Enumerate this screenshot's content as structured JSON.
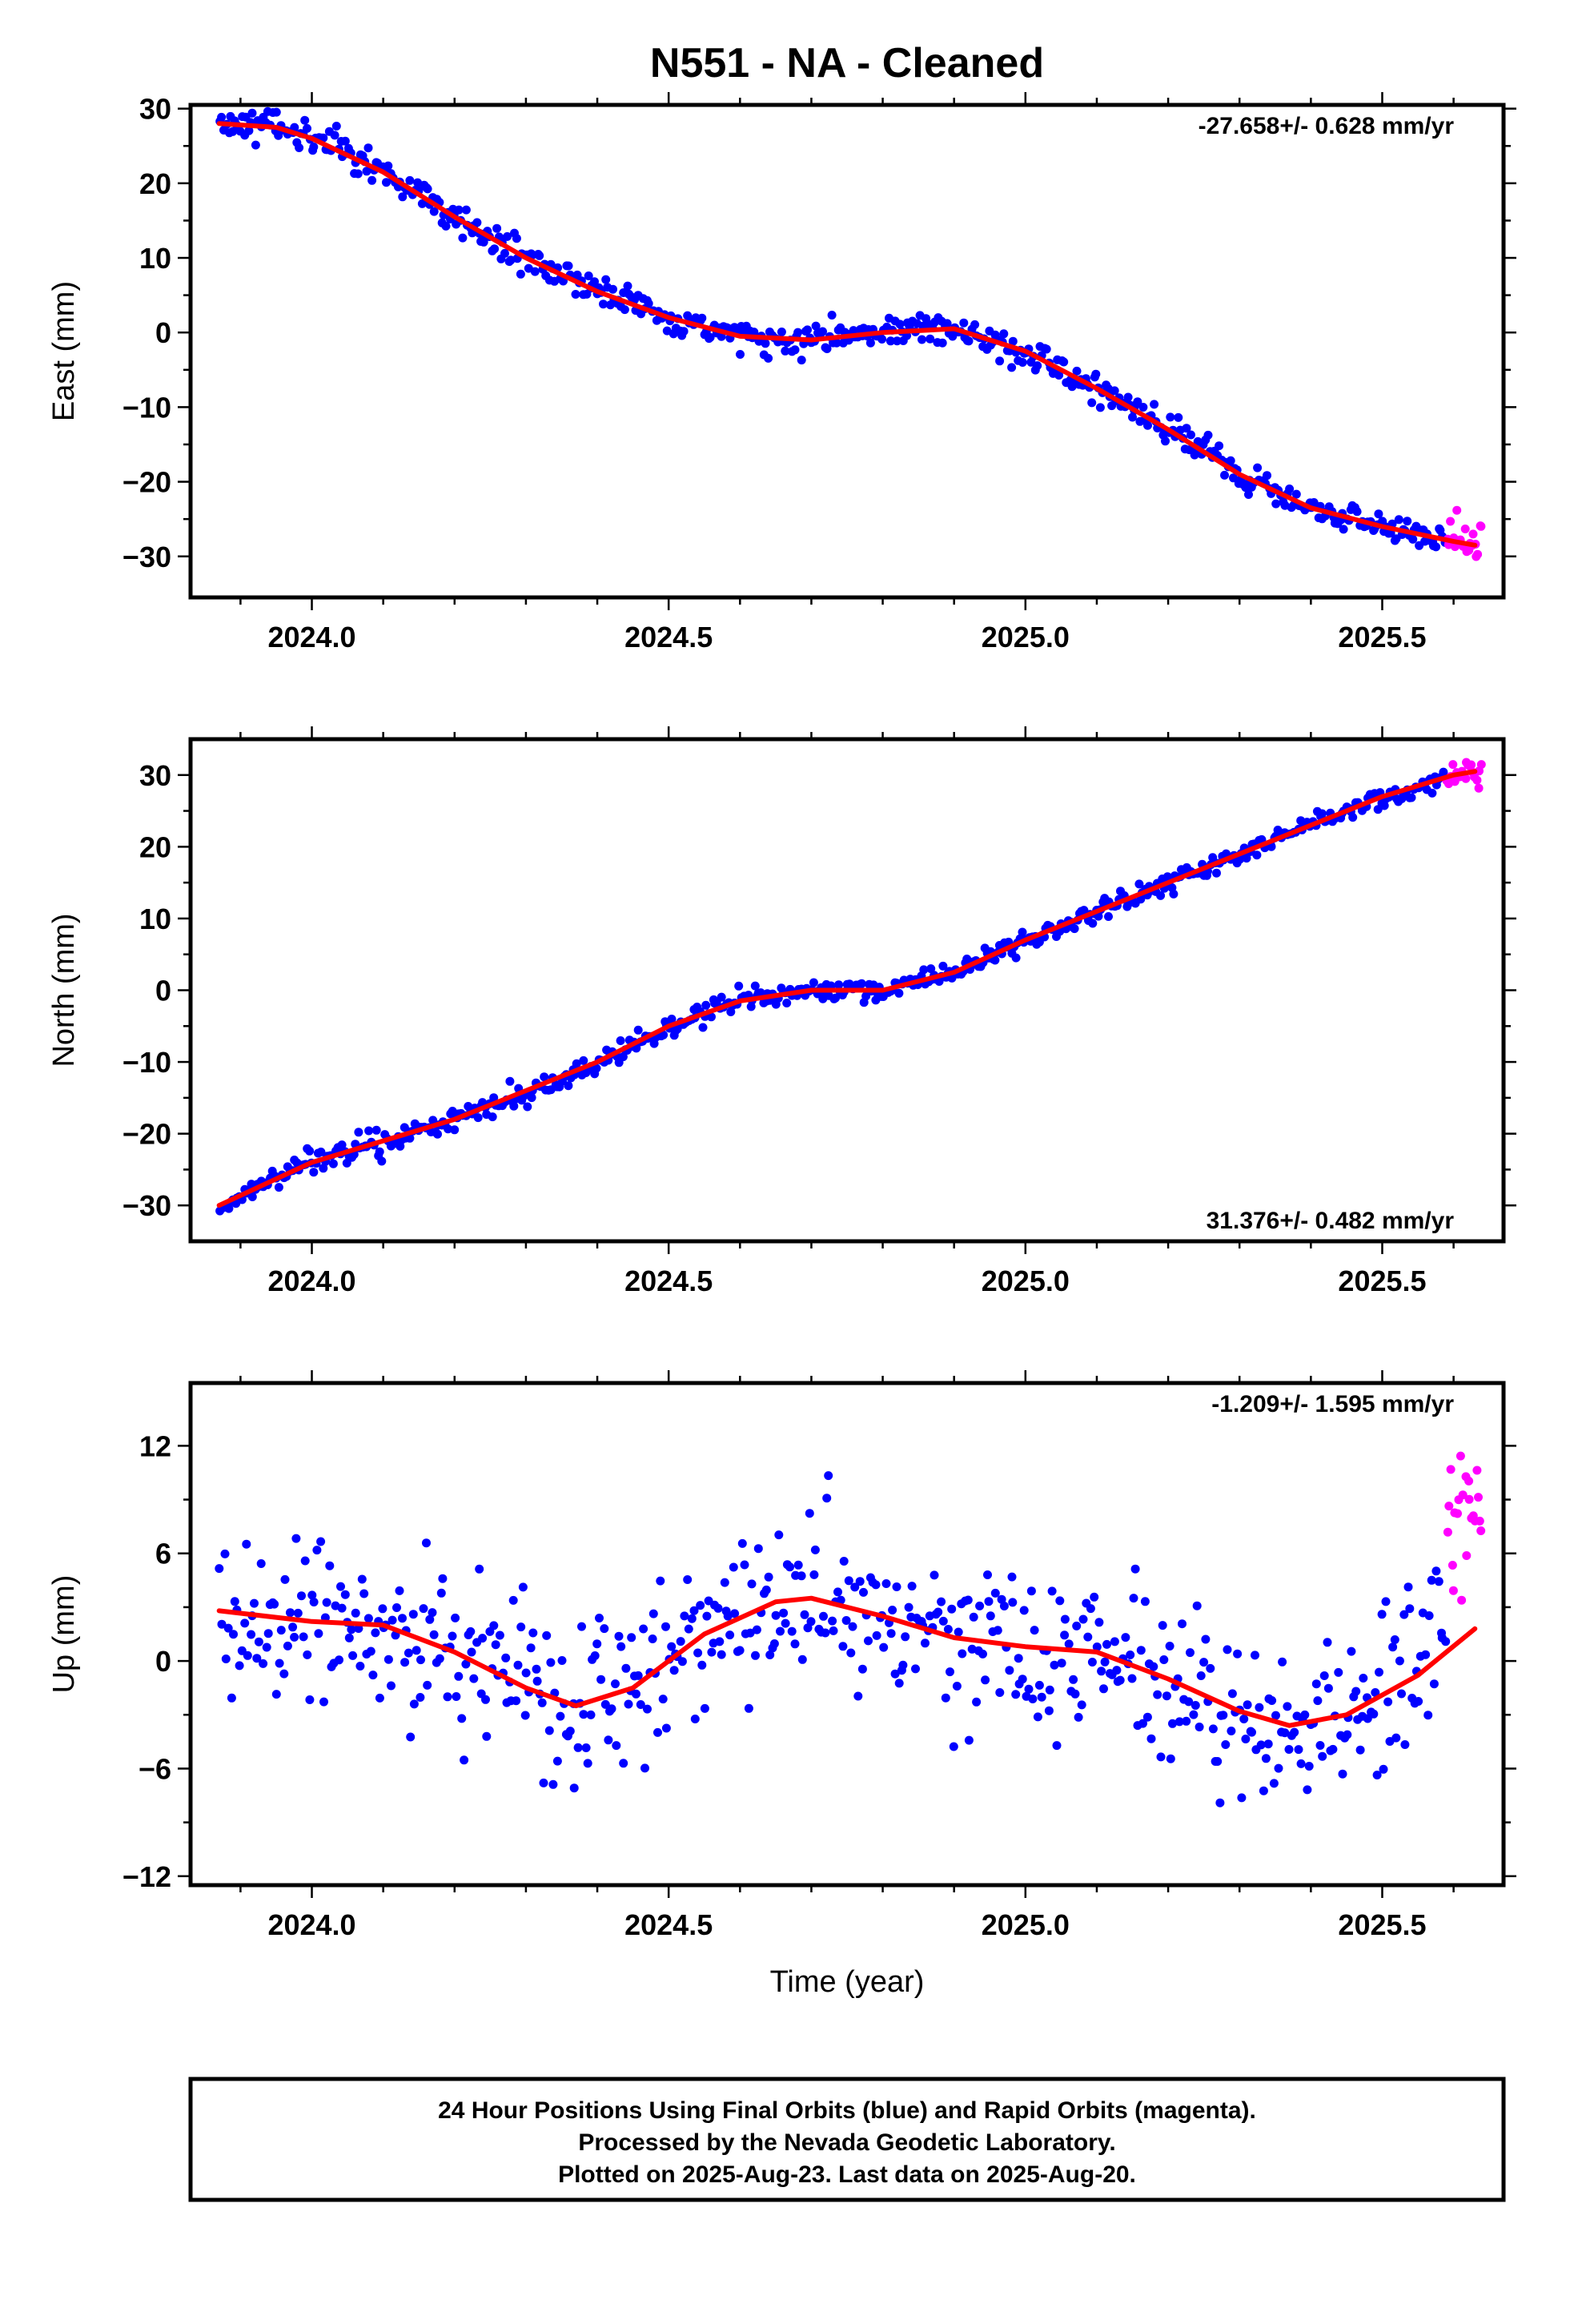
{
  "title": "N551  - NA - Cleaned",
  "xlabel": "Time (year)",
  "footer": [
    "24 Hour Positions Using Final Orbits (blue) and Rapid Orbits (magenta).",
    "Processed by the Nevada Geodetic Laboratory.",
    "Plotted on 2025-Aug-23. Last data on 2025-Aug-20."
  ],
  "colors": {
    "final_orbits": "#0000ff",
    "rapid_orbits": "#ff00ff",
    "fit": "#ff0000",
    "frame": "#000000"
  },
  "chart_data": [
    {
      "type": "scatter",
      "ylabel": "East (mm)",
      "rate": "-27.658+/- 0.628 mm/yr",
      "rate_position": "top-right",
      "xlim": [
        2023.83,
        2025.67
      ],
      "ylim": [
        -35.5,
        30.5
      ],
      "x_ticks": [
        2024.0,
        2024.5,
        2025.0,
        2025.5
      ],
      "x_tick_labels": [
        "2024.0",
        "2024.5",
        "2025.0",
        "2025.5"
      ],
      "y_ticks": [
        -30,
        -20,
        -10,
        0,
        10,
        20,
        30
      ],
      "y_tick_labels": [
        "−30",
        "−20",
        "−10",
        "0",
        "10",
        "20",
        "30"
      ],
      "fit": {
        "x": [
          2023.87,
          2023.95,
          2024.0,
          2024.1,
          2024.2,
          2024.3,
          2024.4,
          2024.5,
          2024.6,
          2024.7,
          2024.8,
          2024.9,
          2025.0,
          2025.1,
          2025.2,
          2025.3,
          2025.4,
          2025.5,
          2025.6,
          2025.63
        ],
        "y": [
          28,
          27.5,
          26,
          21.5,
          15.5,
          10,
          5.5,
          2,
          -0.5,
          -1,
          0,
          0.5,
          -2.5,
          -7.5,
          -13,
          -19,
          -23.5,
          -26,
          -28,
          -28.5
        ]
      },
      "final_orbits": {
        "x_range": [
          2023.87,
          2025.59
        ],
        "scatter_mm": 1.8
      },
      "rapid_orbits": {
        "x_range": [
          2025.59,
          2025.64
        ],
        "scatter_mm": 2.6
      }
    },
    {
      "type": "scatter",
      "ylabel": "North (mm)",
      "rate": "31.376+/- 0.482 mm/yr",
      "rate_position": "bottom-right",
      "xlim": [
        2023.83,
        2025.67
      ],
      "ylim": [
        -35,
        35
      ],
      "x_ticks": [
        2024.0,
        2024.5,
        2025.0,
        2025.5
      ],
      "x_tick_labels": [
        "2024.0",
        "2024.5",
        "2025.0",
        "2025.5"
      ],
      "y_ticks": [
        -30,
        -20,
        -10,
        0,
        10,
        20,
        30
      ],
      "y_tick_labels": [
        "−30",
        "−20",
        "−10",
        "0",
        "10",
        "20",
        "30"
      ],
      "fit": {
        "x": [
          2023.87,
          2024.0,
          2024.2,
          2024.4,
          2024.5,
          2024.6,
          2024.7,
          2024.8,
          2024.9,
          2025.0,
          2025.1,
          2025.2,
          2025.3,
          2025.4,
          2025.5,
          2025.6,
          2025.63
        ],
        "y": [
          -30,
          -24,
          -18,
          -10,
          -5,
          -1.5,
          0,
          0,
          2.5,
          7,
          11,
          15,
          19,
          23,
          27,
          30,
          30.5
        ]
      },
      "final_orbits": {
        "x_range": [
          2023.87,
          2025.59
        ],
        "scatter_mm": 1.3
      },
      "rapid_orbits": {
        "x_range": [
          2025.59,
          2025.64
        ],
        "scatter_mm": 1.5
      }
    },
    {
      "type": "scatter",
      "ylabel": "Up (mm)",
      "rate": "-1.209+/- 1.595 mm/yr",
      "rate_position": "top-right",
      "xlim": [
        2023.83,
        2025.67
      ],
      "ylim": [
        -12.5,
        15.5
      ],
      "x_ticks": [
        2024.0,
        2024.5,
        2025.0,
        2025.5
      ],
      "x_tick_labels": [
        "2024.0",
        "2024.5",
        "2025.0",
        "2025.5"
      ],
      "y_ticks": [
        -12,
        -6,
        0,
        6,
        12
      ],
      "y_tick_labels": [
        "−12",
        "−6",
        "0",
        "6",
        "12"
      ],
      "fit": {
        "x": [
          2023.87,
          2024.0,
          2024.1,
          2024.2,
          2024.3,
          2024.37,
          2024.45,
          2024.55,
          2024.65,
          2024.7,
          2024.8,
          2024.9,
          2025.0,
          2025.1,
          2025.2,
          2025.3,
          2025.37,
          2025.45,
          2025.55,
          2025.63
        ],
        "y": [
          2.8,
          2.2,
          2,
          0.5,
          -1.5,
          -2.5,
          -1.5,
          1.5,
          3.3,
          3.5,
          2.5,
          1.3,
          0.8,
          0.5,
          -1,
          -2.8,
          -3.6,
          -3,
          -0.8,
          1.8
        ]
      },
      "final_orbits": {
        "x_range": [
          2023.87,
          2025.59
        ],
        "scatter_mm": 4.0
      },
      "rapid_orbits": {
        "x_range": [
          2025.59,
          2025.64
        ],
        "scatter_mm": 3.0
      }
    }
  ]
}
